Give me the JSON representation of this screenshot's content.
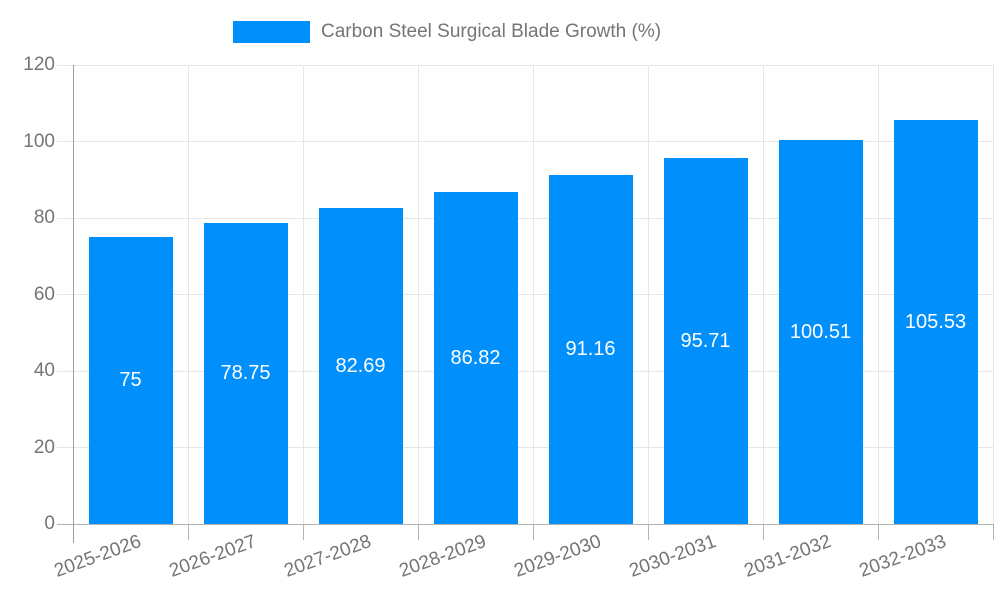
{
  "legend": {
    "label": "Carbon Steel Surgical Blade Growth (%)"
  },
  "chart_data": {
    "type": "bar",
    "title": "Carbon Steel Surgical Blade Growth (%)",
    "categories": [
      "2025-2026",
      "2026-2027",
      "2027-2028",
      "2028-2029",
      "2029-2030",
      "2030-2031",
      "2031-2032",
      "2032-2033"
    ],
    "values": [
      75,
      78.75,
      82.69,
      86.82,
      91.16,
      95.71,
      100.51,
      105.53
    ],
    "value_labels": [
      "75",
      "78.75",
      "82.69",
      "86.82",
      "91.16",
      "95.71",
      "100.51",
      "105.53"
    ],
    "xlabel": "",
    "ylabel": "",
    "ylim": [
      0,
      120
    ],
    "yticks": [
      0,
      20,
      40,
      60,
      80,
      100,
      120
    ],
    "grid": true,
    "legend_position": "top",
    "x_label_rotation_deg": -20,
    "value_label_position": "center-inside"
  },
  "colors": {
    "bar": "#008FFB",
    "gridline": "#e6e6e6",
    "axis_line": "#b3b3b3",
    "y_axis_line": "#9e9e9e",
    "tick_label": "#757575",
    "legend_text": "#757575",
    "value_label": "#ffffff",
    "background": "#ffffff"
  }
}
